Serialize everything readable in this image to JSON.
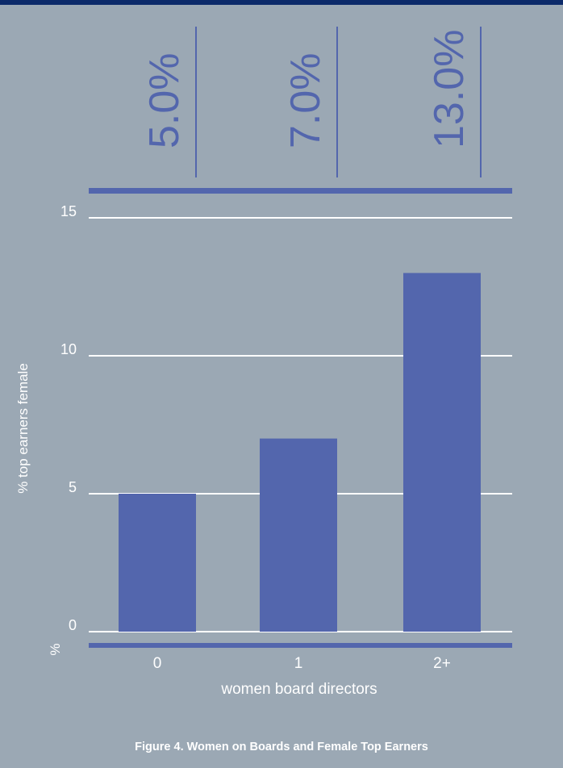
{
  "chart_data": {
    "type": "bar",
    "categories": [
      "0",
      "1",
      "2+"
    ],
    "values": [
      5.0,
      7.0,
      13.0
    ],
    "value_labels": [
      "5.0%",
      "7.0%",
      "13.0%"
    ],
    "xlabel": "women board directors",
    "ylabel": "% top earners female",
    "yunit_label": "%",
    "ylim": [
      0,
      15
    ],
    "yticks": [
      0,
      5,
      10,
      15
    ],
    "grid": true,
    "bar_color": "#5366ad",
    "line_color": "#5366ad",
    "grid_color": "#ffffff"
  },
  "caption": "Figure 4. Women on Boards and Female Top Earners"
}
